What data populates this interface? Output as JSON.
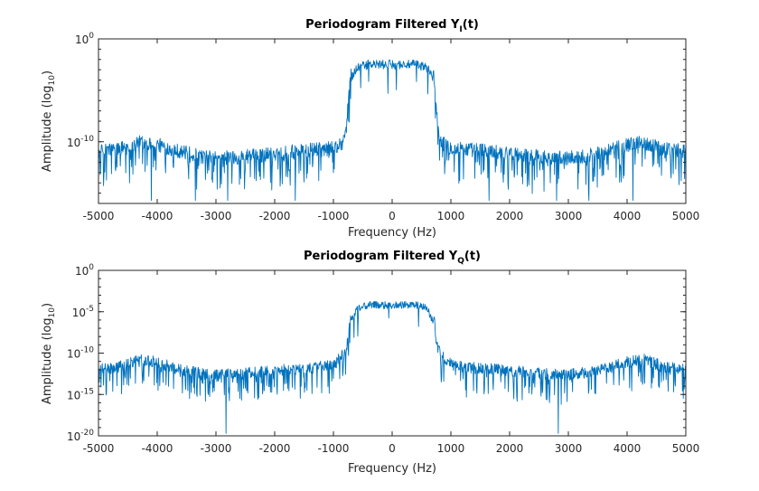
{
  "colors": {
    "series": "#0072bd",
    "axes": "#262626",
    "background": "#ffffff"
  },
  "chart_data": [
    {
      "type": "line",
      "title": "Periodogram Filtered Y",
      "title_subscript": "I",
      "title_suffix": "(t)",
      "xlabel": "Frequency (Hz)",
      "ylabel_main": "Amplitude (log",
      "ylabel_sub": "10",
      "ylabel_close": ")",
      "xlim": [
        -5000,
        5000
      ],
      "ylim_log10": [
        -16,
        0
      ],
      "yscale": "log",
      "x_ticks": [
        -5000,
        -4000,
        -3000,
        -2000,
        -1000,
        0,
        1000,
        2000,
        3000,
        4000,
        5000
      ],
      "x_tick_labels": [
        "-5000",
        "-4000",
        "-3000",
        "-2000",
        "-1000",
        "0",
        "1000",
        "2000",
        "3000",
        "4000",
        "5000"
      ],
      "y_ticks": [
        {
          "value_log10": 0,
          "base": "10",
          "exp": "0"
        },
        {
          "value_log10": -10,
          "base": "10",
          "exp": "-10"
        }
      ],
      "grid": false,
      "series": [
        {
          "color": "#0072bd",
          "envelope": {
            "x": [
              -5000,
              -4600,
              -4300,
              -4000,
              -3700,
              -3300,
              -3000,
              -2600,
              -2200,
              -1800,
              -1400,
              -1100,
              -950,
              -850,
              -780,
              -720,
              -600,
              -400,
              -200,
              0,
              200,
              400,
              600,
              720,
              780,
              850,
              950,
              1100,
              1400,
              1800,
              2200,
              2600,
              3000,
              3300,
              3700,
              4000,
              4300,
              4600,
              5000
            ],
            "y_log10": [
              -11.2,
              -10.8,
              -10.3,
              -10.5,
              -11.0,
              -11.6,
              -11.8,
              -11.7,
              -11.5,
              -11.2,
              -11.0,
              -10.9,
              -10.7,
              -10.3,
              -9.0,
              -4.0,
              -2.8,
              -2.5,
              -2.5,
              -2.5,
              -2.5,
              -2.5,
              -2.8,
              -4.0,
              -9.0,
              -10.3,
              -10.7,
              -10.9,
              -11.0,
              -11.2,
              -11.5,
              -11.7,
              -11.8,
              -11.6,
              -11.0,
              -10.5,
              -10.3,
              -10.8,
              -11.2
            ]
          },
          "deep_notches_hz": [
            -4100,
            -3350,
            -2800,
            -1650,
            1650,
            2800,
            3350,
            4100
          ]
        }
      ]
    },
    {
      "type": "line",
      "title": "Periodogram Filtered Y",
      "title_subscript": "Q",
      "title_suffix": "(t)",
      "xlabel": "Frequency (Hz)",
      "ylabel_main": "Amplitude (log",
      "ylabel_sub": "10",
      "ylabel_close": ")",
      "xlim": [
        -5000,
        5000
      ],
      "ylim_log10": [
        -20,
        0
      ],
      "yscale": "log",
      "x_ticks": [
        -5000,
        -4000,
        -3000,
        -2000,
        -1000,
        0,
        1000,
        2000,
        3000,
        4000,
        5000
      ],
      "x_tick_labels": [
        "-5000",
        "-4000",
        "-3000",
        "-2000",
        "-1000",
        "0",
        "1000",
        "2000",
        "3000",
        "4000",
        "5000"
      ],
      "y_ticks": [
        {
          "value_log10": 0,
          "base": "10",
          "exp": "0"
        },
        {
          "value_log10": -5,
          "base": "10",
          "exp": "-5"
        },
        {
          "value_log10": -10,
          "base": "10",
          "exp": "-10"
        },
        {
          "value_log10": -15,
          "base": "10",
          "exp": "-15"
        },
        {
          "value_log10": -20,
          "base": "10",
          "exp": "-20"
        }
      ],
      "grid": false,
      "series": [
        {
          "color": "#0072bd",
          "envelope": {
            "x": [
              -5000,
              -4600,
              -4300,
              -4000,
              -3700,
              -3300,
              -3000,
              -2600,
              -2200,
              -1800,
              -1400,
              -1100,
              -950,
              -850,
              -780,
              -720,
              -600,
              -400,
              -200,
              0,
              200,
              400,
              600,
              720,
              780,
              850,
              950,
              1100,
              1400,
              1800,
              2200,
              2600,
              3000,
              3300,
              3700,
              4000,
              4300,
              4600,
              5000
            ],
            "y_log10": [
              -12.2,
              -11.8,
              -11.0,
              -11.3,
              -12.0,
              -12.6,
              -12.8,
              -12.7,
              -12.5,
              -12.2,
              -12.0,
              -11.8,
              -11.3,
              -10.5,
              -9.8,
              -6.5,
              -4.6,
              -4.2,
              -4.2,
              -4.2,
              -4.2,
              -4.2,
              -4.6,
              -6.5,
              -9.8,
              -10.5,
              -11.3,
              -11.8,
              -12.0,
              -12.2,
              -12.5,
              -12.7,
              -12.8,
              -12.6,
              -12.0,
              -11.3,
              -11.0,
              -11.8,
              -12.2
            ]
          },
          "deep_notches_hz": [
            -2830,
            2830
          ]
        }
      ]
    }
  ]
}
